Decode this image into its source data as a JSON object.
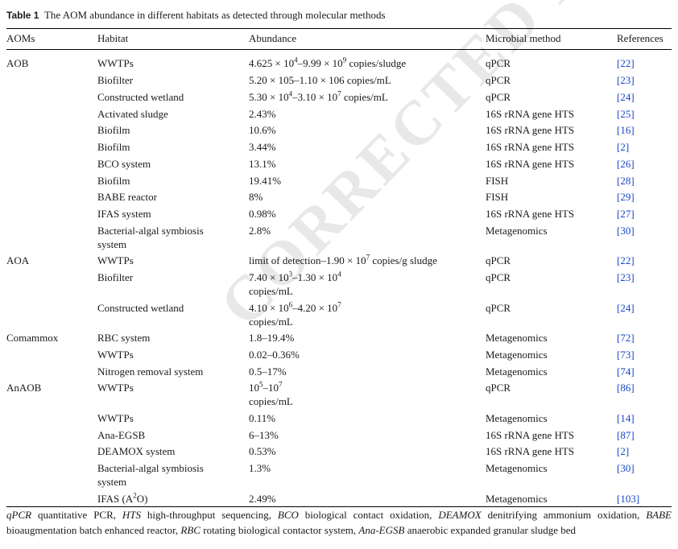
{
  "table": {
    "label": "Table 1",
    "caption": "The AOM abundance in different habitats as detected through molecular methods",
    "headers": [
      "AOMs",
      "Habitat",
      "Abundance",
      "Microbial method",
      "References"
    ],
    "rows": [
      {
        "aom": "AOB",
        "habitat": "WWTPs",
        "abundance": "4.625 × 10<sup>4</sup>–9.99 × 10<sup>9</sup> copies/sludge",
        "method": "qPCR",
        "ref": "[22]"
      },
      {
        "aom": "",
        "habitat": "Biofilter",
        "abundance": "5.20 × 105–1.10 × 106 copies/mL",
        "method": "qPCR",
        "ref": "[23]"
      },
      {
        "aom": "",
        "habitat": "Constructed wetland",
        "abundance": "5.30 × 10<sup>4</sup>–3.10 × 10<sup>7</sup> copies/mL",
        "method": "qPCR",
        "ref": "[24]"
      },
      {
        "aom": "",
        "habitat": "Activated sludge",
        "abundance": "2.43%",
        "method": "16S rRNA gene HTS",
        "ref": "[25]"
      },
      {
        "aom": "",
        "habitat": "Biofilm",
        "abundance": "10.6%",
        "method": "16S rRNA gene HTS",
        "ref": "[16]"
      },
      {
        "aom": "",
        "habitat": "Biofilm",
        "abundance": "3.44%",
        "method": "16S rRNA gene HTS",
        "ref": "[2]"
      },
      {
        "aom": "",
        "habitat": "BCO system",
        "abundance": "13.1%",
        "method": "16S rRNA gene HTS",
        "ref": "[26]"
      },
      {
        "aom": "",
        "habitat": "Biofilm",
        "abundance": "19.41%",
        "method": "FISH",
        "ref": "[28]"
      },
      {
        "aom": "",
        "habitat": "BABE reactor",
        "abundance": "8%",
        "method": "FISH",
        "ref": "[29]"
      },
      {
        "aom": "",
        "habitat": "IFAS system",
        "abundance": "0.98%",
        "method": "16S rRNA gene HTS",
        "ref": "[27]"
      },
      {
        "aom": "",
        "habitat": "Bacterial-algal symbiosis",
        "habitat2": "system",
        "abundance": "2.8%",
        "method": "Metagenomics",
        "ref": "[30]"
      },
      {
        "aom": "AOA",
        "habitat": "WWTPs",
        "abundance": "limit of detection–1.90 × 10<sup>7</sup> copies/g sludge",
        "method": "qPCR",
        "ref": "[22]"
      },
      {
        "aom": "",
        "habitat": "Biofilter",
        "abundance": "7.40 × 10<sup>3</sup>–1.30 × 10<sup>4</sup>",
        "abundance2": "copies/mL",
        "method": "qPCR",
        "ref": "[23]"
      },
      {
        "aom": "",
        "habitat": "Constructed wetland",
        "abundance": "4.10 × 10<sup>6</sup>–4.20 × 10<sup>7</sup>",
        "abundance2": "copies/mL",
        "method": "qPCR",
        "ref": "[24]"
      },
      {
        "aom": "Comammox",
        "habitat": "RBC system",
        "abundance": "1.8–19.4%",
        "method": "Metagenomics",
        "ref": "[72]"
      },
      {
        "aom": "",
        "habitat": "WWTPs",
        "abundance": "0.02–0.36%",
        "method": "Metagenomics",
        "ref": "[73]"
      },
      {
        "aom": "",
        "habitat": "Nitrogen removal system",
        "abundance": "0.5–17%",
        "method": "Metagenomics",
        "ref": "[74]"
      },
      {
        "aom": "AnAOB",
        "habitat": "WWTPs",
        "abundance": "10<sup>5</sup>–10<sup>7</sup>",
        "abundance2": "copies/mL",
        "method": "qPCR",
        "ref": "[86]"
      },
      {
        "aom": "",
        "habitat": "WWTPs",
        "abundance": "0.11%",
        "method": "Metagenomics",
        "ref": "[14]"
      },
      {
        "aom": "",
        "habitat": "Ana-EGSB",
        "abundance": "6–13%",
        "method": "16S rRNA gene HTS",
        "ref": "[87]"
      },
      {
        "aom": "",
        "habitat": "DEAMOX system",
        "abundance": "0.53%",
        "method": "16S rRNA gene HTS",
        "ref": "[2]"
      },
      {
        "aom": "",
        "habitat": "Bacterial-algal symbiosis",
        "habitat2": "system",
        "abundance": "1.3%",
        "method": "Metagenomics",
        "ref": "[30]"
      },
      {
        "aom": "",
        "habitat": "IFAS (A<sup>2</sup>O)",
        "abundance": "2.49%",
        "method": "Metagenomics",
        "ref": "[103]"
      }
    ]
  },
  "footnote": "<i>qPCR</i> quantitative PCR, <i>HTS</i> high-throughput sequencing, <i>BCO</i> biological contact oxidation, <i>DEAMOX</i> denitrifying ammonium oxidation, <i>BABE</i> bioaugmentation batch enhanced reactor, <i>RBC</i> rotating biological contactor system, <i>Ana-EGSB</i> anaerobic expanded granular sludge bed",
  "watermark": "CORRECTED PROOF",
  "colors": {
    "reference_link": "#1a46c8",
    "watermark": "#e8e8e8"
  }
}
